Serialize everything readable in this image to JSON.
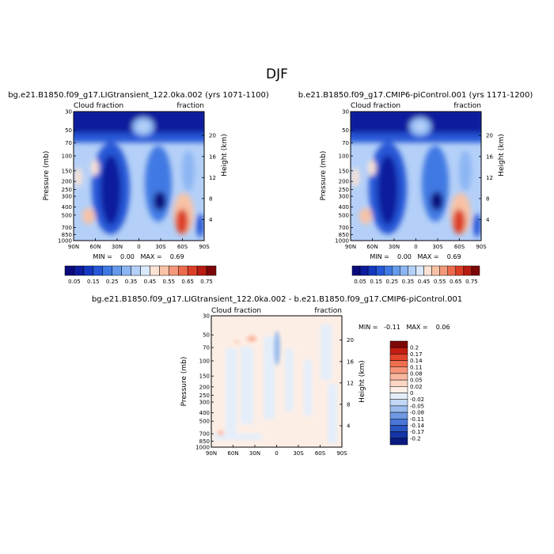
{
  "page": {
    "title": "DJF"
  },
  "panels": [
    {
      "title": "bg.e21.B1850.f09_g17.LIGtransient_122.0ka.002 (yrs 1071-1100)",
      "left_label": "Cloud fraction",
      "right_label": "fraction",
      "ylabel": "Pressure (mb)",
      "y2label": "Height (km)",
      "stats": "MIN =    0.00   MAX =    0.69"
    },
    {
      "title": "b.e21.B1850.f09_g17.CMIP6-piControl.001 (yrs 1171-1200)",
      "left_label": "Cloud fraction",
      "right_label": "fraction",
      "ylabel": "Pressure (mb)",
      "y2label": "Height (km)",
      "stats": "MIN =    0.00   MAX =    0.69"
    },
    {
      "title": "bg.e21.B1850.f09_g17.LIGtransient_122.0ka.002 - b.e21.B1850.f09_g17.CMIP6-piControl.001",
      "left_label": "Cloud fraction",
      "right_label": "fraction",
      "ylabel": "Pressure (mb)",
      "y2label": "Height (km)",
      "stats": "MIN =   -0.11   MAX =    0.06"
    }
  ],
  "chart_data": [
    {
      "type": "heatmap",
      "title": "bg.e21.B1850.f09_g17.LIGtransient_122.0ka.002 (yrs 1071-1100)",
      "xlabel": "",
      "ylabel": "Pressure (mb)",
      "y2label": "Height (km)",
      "x_ticks": [
        "90N",
        "60N",
        "30N",
        "0",
        "30S",
        "60S",
        "90S"
      ],
      "y_ticks": [
        "30",
        "50",
        "70",
        "100",
        "150",
        "200",
        "250",
        "300",
        "400",
        "500",
        "700",
        "850",
        "1000"
      ],
      "y_log_scale": true,
      "y2_ticks": [
        "20",
        "16",
        "12",
        "8",
        "4"
      ],
      "colorbar_levels": [
        0.05,
        0.1,
        0.15,
        0.2,
        0.25,
        0.3,
        0.35,
        0.4,
        0.45,
        0.5,
        0.55,
        0.6,
        0.65,
        0.7,
        0.75
      ],
      "colorbar_labels": [
        "0.05",
        "0.15",
        "0.25",
        "0.35",
        "0.45",
        "0.55",
        "0.65",
        "0.75"
      ],
      "min": 0.0,
      "max": 0.69
    },
    {
      "type": "heatmap",
      "title": "b.e21.B1850.f09_g17.CMIP6-piControl.001 (yrs 1171-1200)",
      "xlabel": "",
      "ylabel": "Pressure (mb)",
      "y2label": "Height (km)",
      "x_ticks": [
        "90N",
        "60N",
        "30N",
        "0",
        "30S",
        "60S",
        "90S"
      ],
      "y_ticks": [
        "30",
        "50",
        "70",
        "100",
        "150",
        "200",
        "250",
        "300",
        "400",
        "500",
        "700",
        "850",
        "1000"
      ],
      "y_log_scale": true,
      "y2_ticks": [
        "20",
        "16",
        "12",
        "8",
        "4"
      ],
      "colorbar_levels": [
        0.05,
        0.1,
        0.15,
        0.2,
        0.25,
        0.3,
        0.35,
        0.4,
        0.45,
        0.5,
        0.55,
        0.6,
        0.65,
        0.7,
        0.75
      ],
      "colorbar_labels": [
        "0.05",
        "0.15",
        "0.25",
        "0.35",
        "0.45",
        "0.55",
        "0.65",
        "0.75"
      ],
      "min": 0.0,
      "max": 0.69
    },
    {
      "type": "heatmap",
      "title": "bg.e21.B1850.f09_g17.LIGtransient_122.0ka.002 - b.e21.B1850.f09_g17.CMIP6-piControl.001",
      "xlabel": "",
      "ylabel": "Pressure (mb)",
      "y2label": "Height (km)",
      "x_ticks": [
        "90N",
        "60N",
        "30N",
        "0",
        "30S",
        "60S",
        "90S"
      ],
      "y_ticks": [
        "30",
        "50",
        "70",
        "100",
        "150",
        "200",
        "250",
        "300",
        "400",
        "500",
        "700",
        "850",
        "1000"
      ],
      "y_log_scale": true,
      "y2_ticks": [
        "20",
        "16",
        "12",
        "8",
        "4"
      ],
      "colorbar_levels": [
        0.2,
        0.17,
        0.14,
        0.11,
        0.08,
        0.05,
        0.02,
        0,
        -0.02,
        -0.05,
        -0.08,
        -0.11,
        -0.14,
        -0.17,
        -0.2
      ],
      "colorbar_labels": [
        "0.2",
        "0.17",
        "0.14",
        "0.11",
        "0.08",
        "0.05",
        "0.02",
        "0",
        "-0.02",
        "-0.05",
        "-0.08",
        "-0.11",
        "-0.14",
        "-0.17",
        "-0.2"
      ],
      "min": -0.11,
      "max": 0.06
    }
  ],
  "palettes": {
    "cloud": [
      "#0a0a7d",
      "#0d1c9e",
      "#1538c0",
      "#2557d6",
      "#3f79e3",
      "#6499ec",
      "#8cb6f3",
      "#b4d0f8",
      "#d9e8fb",
      "#fbe2d3",
      "#f8c2a6",
      "#f3997a",
      "#ec6b4c",
      "#dd3f26",
      "#b81c12",
      "#7d0707"
    ],
    "diff_top_to_bottom": [
      "#7d0707",
      "#c21e12",
      "#e2442a",
      "#ef6e4e",
      "#f5957a",
      "#f9b79f",
      "#fcd6c4",
      "#fdeee5",
      "#e4eefa",
      "#c2d8f5",
      "#9abced",
      "#7099e3",
      "#4a77d6",
      "#2a55c2",
      "#1535a4",
      "#0a1a80"
    ]
  }
}
